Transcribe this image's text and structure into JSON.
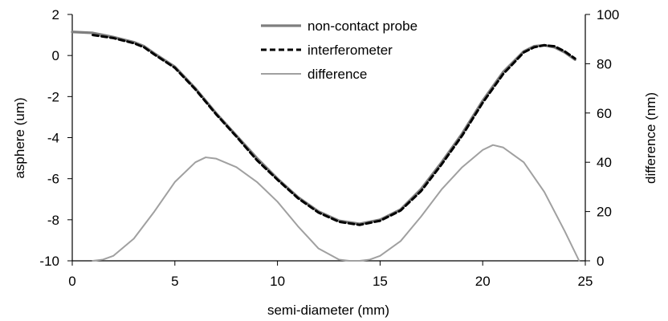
{
  "chart_data": {
    "type": "line",
    "xlabel": "semi-diameter (mm)",
    "ylabel": "asphere (um)",
    "y2label": "difference (nm)",
    "xlim": [
      0,
      25
    ],
    "ylim": [
      -10,
      2
    ],
    "y2lim": [
      0,
      100
    ],
    "xticks": [
      "0",
      "5",
      "10",
      "15",
      "20",
      "25"
    ],
    "yticks": [
      "2",
      "0",
      "-2",
      "-4",
      "-6",
      "-8",
      "-10"
    ],
    "y2ticks": [
      "100",
      "80",
      "60",
      "40",
      "20",
      "0"
    ],
    "grid": false,
    "legend_position": "top-center",
    "series": [
      {
        "name": "non-contact probe",
        "axis": "left",
        "style": "solid-gray",
        "color": "#7f7f7f",
        "x": [
          0,
          1,
          2,
          3,
          3.5,
          4,
          5,
          6,
          7,
          8,
          9,
          10,
          11,
          12,
          13,
          14,
          15,
          16,
          17,
          18,
          19,
          20,
          21,
          22,
          22.5,
          23,
          23.5,
          24,
          24.5
        ],
        "y": [
          1.15,
          1.1,
          0.9,
          0.65,
          0.45,
          0.1,
          -0.55,
          -1.6,
          -2.8,
          -3.9,
          -5.0,
          -6.0,
          -6.9,
          -7.6,
          -8.05,
          -8.2,
          -8.0,
          -7.5,
          -6.5,
          -5.2,
          -3.8,
          -2.2,
          -0.8,
          0.2,
          0.45,
          0.5,
          0.4,
          0.15,
          -0.2
        ]
      },
      {
        "name": "interferometer",
        "axis": "left",
        "style": "dashed-black",
        "color": "#000000",
        "x": [
          1,
          2,
          3,
          3.5,
          4,
          5,
          6,
          7,
          8,
          9,
          10,
          11,
          12,
          13,
          14,
          15,
          16,
          17,
          18,
          19,
          20,
          21,
          22,
          22.5,
          23,
          23.5,
          24,
          24.5
        ],
        "y": [
          1.0,
          0.85,
          0.6,
          0.4,
          0.05,
          -0.6,
          -1.65,
          -2.85,
          -3.95,
          -5.1,
          -6.05,
          -6.95,
          -7.65,
          -8.1,
          -8.25,
          -8.05,
          -7.55,
          -6.6,
          -5.3,
          -3.9,
          -2.3,
          -0.9,
          0.15,
          0.4,
          0.5,
          0.45,
          0.2,
          -0.15
        ]
      },
      {
        "name": "difference",
        "axis": "right",
        "style": "thin-gray",
        "color": "#999999",
        "x": [
          1,
          1.5,
          2,
          3,
          4,
          5,
          6,
          6.5,
          7,
          8,
          9,
          10,
          11,
          12,
          13,
          13.5,
          14,
          14.5,
          15,
          16,
          17,
          18,
          19,
          20,
          20.5,
          21,
          22,
          23,
          24,
          24.7
        ],
        "y": [
          0,
          0.5,
          2,
          9,
          20,
          32,
          40,
          42,
          41.5,
          38,
          32,
          24,
          14,
          5,
          0.5,
          0,
          0,
          0.5,
          2,
          8,
          18,
          29,
          38,
          45,
          47,
          46,
          40,
          28,
          12,
          0
        ]
      }
    ]
  }
}
